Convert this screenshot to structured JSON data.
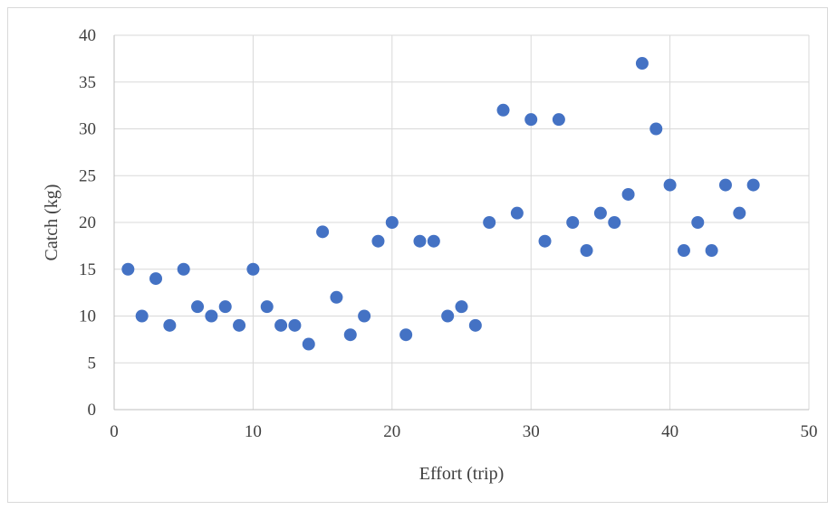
{
  "chart_data": {
    "type": "scatter",
    "xlabel": "Effort (trip)",
    "ylabel": "Catch (kg)",
    "xlim": [
      0,
      50
    ],
    "ylim": [
      0,
      40
    ],
    "x_ticks": [
      0,
      10,
      20,
      30,
      40,
      50
    ],
    "y_ticks": [
      0,
      5,
      10,
      15,
      20,
      25,
      30,
      35,
      40
    ],
    "grid": true,
    "legend": "none",
    "marker_color": "#4472c4",
    "points": [
      {
        "x": 1,
        "y": 15
      },
      {
        "x": 2,
        "y": 10
      },
      {
        "x": 3,
        "y": 14
      },
      {
        "x": 4,
        "y": 9
      },
      {
        "x": 5,
        "y": 15
      },
      {
        "x": 6,
        "y": 11
      },
      {
        "x": 7,
        "y": 10
      },
      {
        "x": 8,
        "y": 11
      },
      {
        "x": 9,
        "y": 9
      },
      {
        "x": 10,
        "y": 15
      },
      {
        "x": 11,
        "y": 11
      },
      {
        "x": 12,
        "y": 9
      },
      {
        "x": 13,
        "y": 9
      },
      {
        "x": 14,
        "y": 7
      },
      {
        "x": 15,
        "y": 19
      },
      {
        "x": 16,
        "y": 12
      },
      {
        "x": 17,
        "y": 8
      },
      {
        "x": 18,
        "y": 10
      },
      {
        "x": 19,
        "y": 18
      },
      {
        "x": 20,
        "y": 20
      },
      {
        "x": 21,
        "y": 8
      },
      {
        "x": 22,
        "y": 18
      },
      {
        "x": 23,
        "y": 18
      },
      {
        "x": 24,
        "y": 10
      },
      {
        "x": 25,
        "y": 11
      },
      {
        "x": 26,
        "y": 9
      },
      {
        "x": 27,
        "y": 20
      },
      {
        "x": 28,
        "y": 32
      },
      {
        "x": 29,
        "y": 21
      },
      {
        "x": 30,
        "y": 31
      },
      {
        "x": 31,
        "y": 18
      },
      {
        "x": 32,
        "y": 31
      },
      {
        "x": 33,
        "y": 20
      },
      {
        "x": 34,
        "y": 17
      },
      {
        "x": 35,
        "y": 21
      },
      {
        "x": 36,
        "y": 20
      },
      {
        "x": 37,
        "y": 23
      },
      {
        "x": 38,
        "y": 37
      },
      {
        "x": 39,
        "y": 30
      },
      {
        "x": 40,
        "y": 24
      },
      {
        "x": 41,
        "y": 17
      },
      {
        "x": 42,
        "y": 20
      },
      {
        "x": 43,
        "y": 17
      },
      {
        "x": 44,
        "y": 24
      },
      {
        "x": 45,
        "y": 21
      },
      {
        "x": 46,
        "y": 24
      }
    ]
  }
}
